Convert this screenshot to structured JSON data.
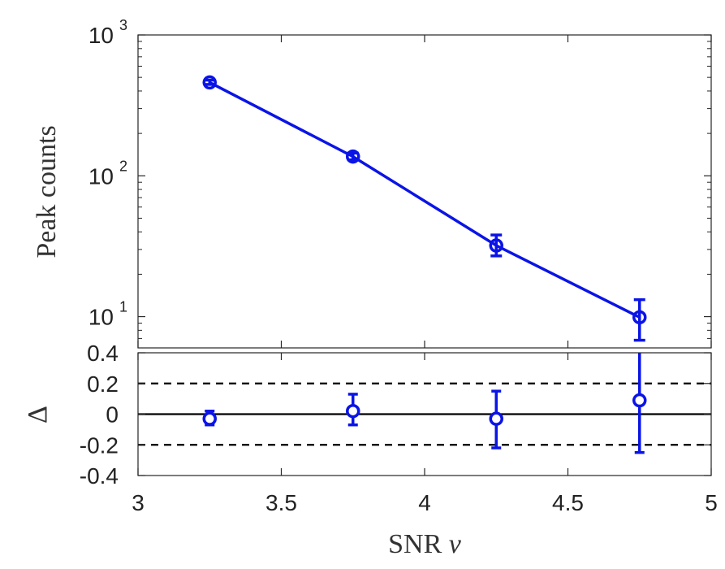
{
  "chart_data": [
    {
      "type": "line",
      "ylabel": "Peak counts",
      "yscale": "log",
      "ylim": [
        6,
        1000
      ],
      "xlim": [
        3,
        5
      ],
      "yticks": [
        {
          "base": "10",
          "exp": "1",
          "value": 10
        },
        {
          "base": "10",
          "exp": "2",
          "value": 100
        },
        {
          "base": "10",
          "exp": "3",
          "value": 1000
        }
      ],
      "grid": false,
      "color": "#0a14e6",
      "series": [
        {
          "x": [
            3.25,
            3.75,
            4.25,
            4.75
          ],
          "y": [
            460,
            137,
            32,
            9.9
          ],
          "yerr_low": [
            445,
            130,
            27,
            6.8
          ],
          "yerr_high": [
            478,
            145,
            38,
            13.2
          ],
          "line": [
            460,
            137,
            32,
            9.9
          ]
        }
      ]
    },
    {
      "type": "scatter",
      "ylabel": "Δ",
      "xlabel_parts": [
        "SNR ",
        "ν"
      ],
      "xlim": [
        3,
        5
      ],
      "ylim": [
        -0.4,
        0.4
      ],
      "xticks": [
        "3",
        "3.5",
        "4",
        "4.5",
        "5"
      ],
      "yticks": [
        "0.4",
        "0.2",
        "0",
        "-0.2",
        "-0.4"
      ],
      "reference_lines": {
        "solid": 0,
        "dashed": [
          0.2,
          -0.2
        ]
      },
      "grid": false,
      "color": "#0a14e6",
      "series": [
        {
          "x": [
            3.25,
            3.75,
            4.25,
            4.75
          ],
          "y": [
            -0.03,
            0.02,
            -0.03,
            0.09
          ],
          "yerr_low": [
            -0.07,
            -0.07,
            -0.22,
            -0.25
          ],
          "yerr_high": [
            0.02,
            0.13,
            0.15,
            0.42
          ]
        }
      ]
    }
  ]
}
